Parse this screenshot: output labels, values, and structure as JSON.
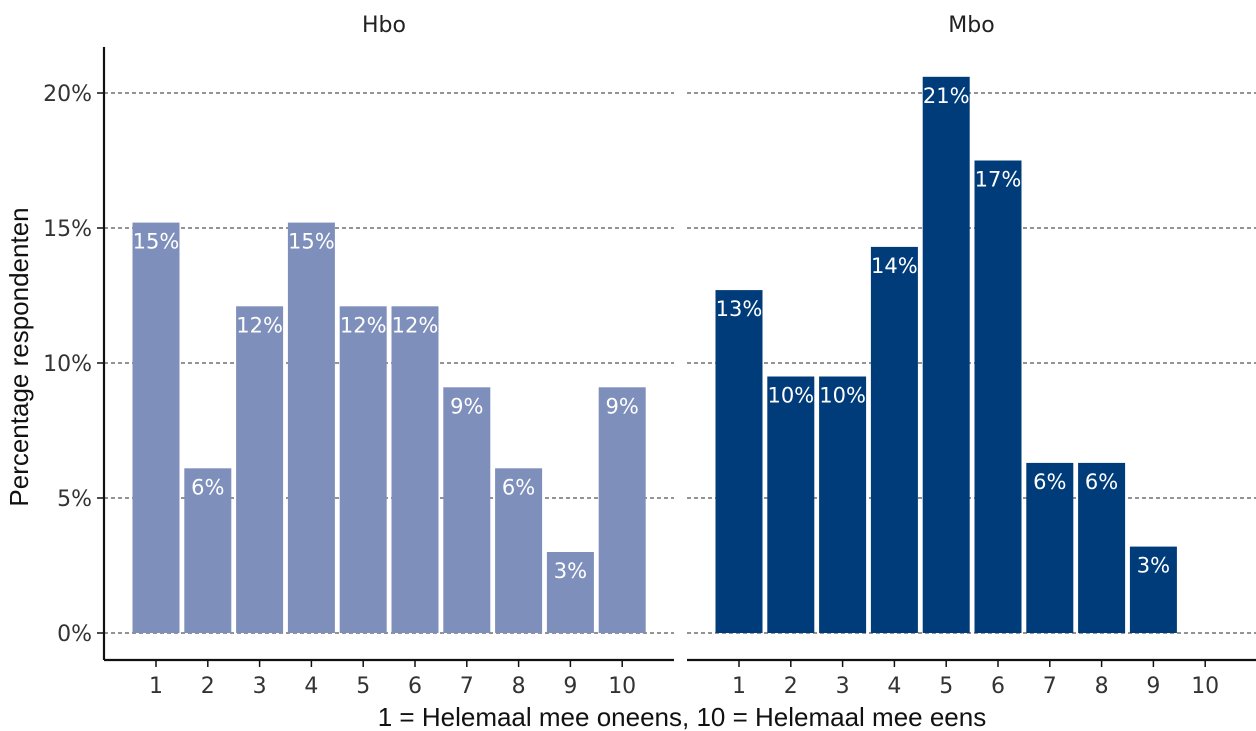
{
  "chart_data": {
    "type": "bar",
    "xlabel": "1 = Helemaal mee oneens, 10 = Helemaal mee eens",
    "ylabel": "Percentage respondenten",
    "ylim": [
      0,
      22
    ],
    "y_ticks": [
      0,
      5,
      10,
      15,
      20
    ],
    "y_tick_labels": [
      "0%",
      "5%",
      "10%",
      "15%",
      "20%"
    ],
    "categories": [
      "1",
      "2",
      "3",
      "4",
      "5",
      "6",
      "7",
      "8",
      "9",
      "10"
    ],
    "grid": "horizontal dashed",
    "panels": [
      {
        "name": "Hbo",
        "color": "#7f8fbb",
        "values": [
          15.2,
          6.1,
          12.1,
          15.2,
          12.1,
          12.1,
          9.1,
          6.1,
          3.0,
          9.1
        ],
        "labels": [
          "15%",
          "6%",
          "12%",
          "15%",
          "12%",
          "12%",
          "9%",
          "6%",
          "3%",
          "9%"
        ]
      },
      {
        "name": "Mbo",
        "color": "#003b7a",
        "values": [
          12.7,
          9.5,
          9.5,
          14.3,
          20.6,
          17.5,
          6.3,
          6.3,
          3.2,
          0
        ],
        "labels": [
          "13%",
          "10%",
          "10%",
          "14%",
          "21%",
          "17%",
          "6%",
          "6%",
          "3%",
          ""
        ]
      }
    ]
  }
}
